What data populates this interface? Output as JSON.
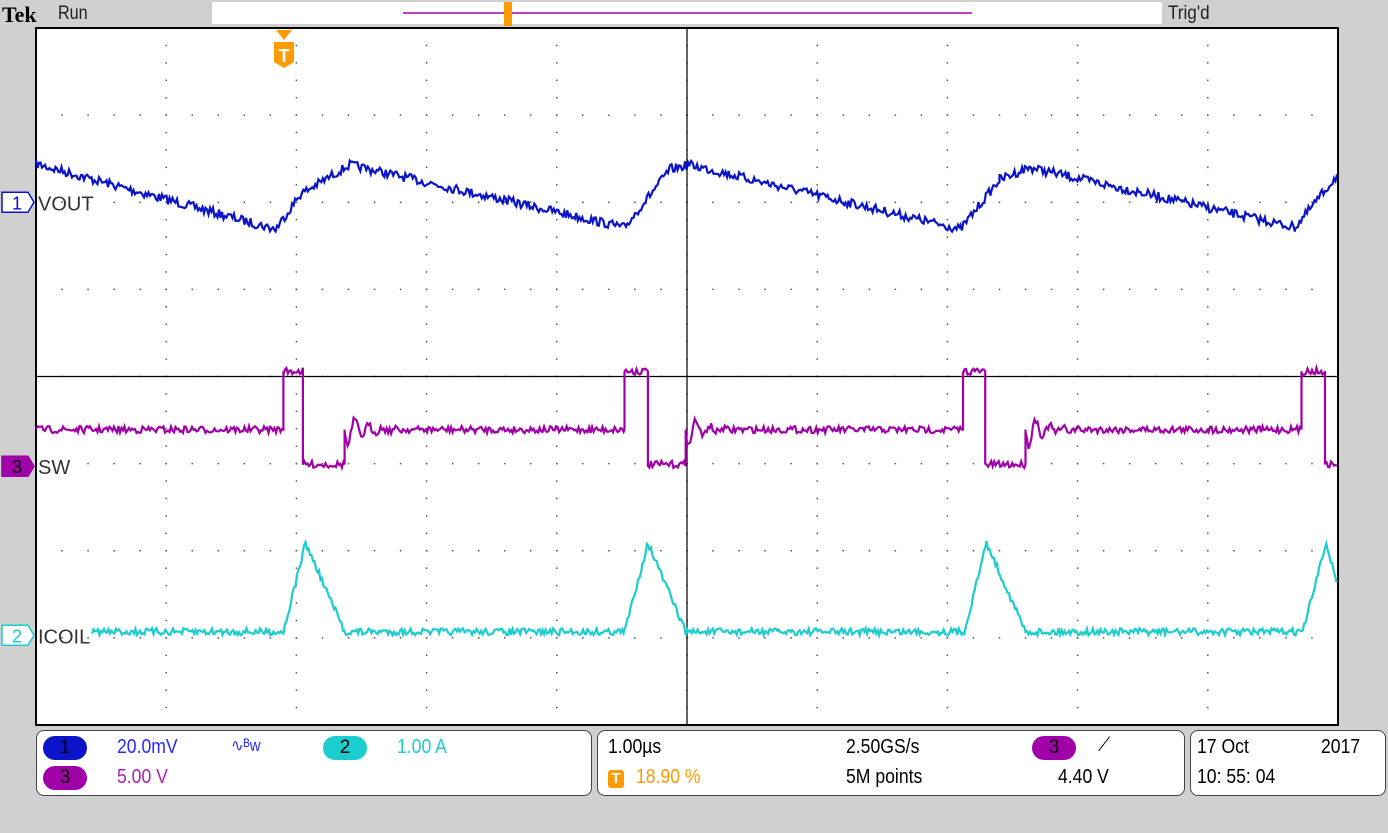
{
  "header": {
    "brand": "Tek",
    "state": "Run",
    "trigger_status": "Trig'd"
  },
  "colors": {
    "ch1": "#0a14c8",
    "ch2": "#1ccdd0",
    "ch3": "#a000a8",
    "trigger": "#ff9a00",
    "record": "#c040c0"
  },
  "icons": {
    "trigger_marker": "T-pentagon-icon",
    "bandwidth_limit": "bw-icon",
    "trigger_slope": "rising-edge-icon"
  },
  "chart_data": {
    "type": "line",
    "title": "",
    "xlabel": "",
    "ylabel": "",
    "x_unit": "µs",
    "xlim": [
      0,
      10
    ],
    "ylim_div": [
      -4,
      4
    ],
    "grid": true,
    "h_divisions": 10,
    "v_divisions": 8,
    "series": [
      {
        "name": "VOUT",
        "channel": "1",
        "color": "#0a14c8",
        "marker_div": 2.0,
        "x": [
          0,
          1.84,
          2.03,
          2.41,
          4.52,
          4.87,
          5.02,
          7.1,
          7.4,
          7.63,
          9.67,
          10
        ],
        "y": [
          2.44,
          1.69,
          2.09,
          2.43,
          1.71,
          2.38,
          2.43,
          1.69,
          2.26,
          2.4,
          1.71,
          2.32
        ]
      },
      {
        "name": "SW",
        "channel": "3",
        "color": "#a000a8",
        "marker_div": -1.03,
        "x": [
          0,
          1.9,
          1.9,
          2.05,
          2.05,
          2.37,
          2.37,
          4.52,
          4.52,
          4.7,
          4.7,
          4.99,
          4.99,
          7.12,
          7.12,
          7.29,
          7.29,
          7.6,
          7.6,
          9.72,
          9.72,
          9.9,
          9.9,
          10
        ],
        "y": [
          -0.61,
          -0.61,
          0.06,
          0.06,
          -1.01,
          -1.01,
          -0.61,
          -0.61,
          0.06,
          0.06,
          -1.01,
          -1.01,
          -0.61,
          -0.61,
          0.06,
          0.06,
          -1.01,
          -1.01,
          -0.61,
          -0.61,
          0.06,
          0.06,
          -1.01,
          -1.01
        ]
      },
      {
        "name": "ICOIL",
        "channel": "2",
        "color": "#1ccdd0",
        "marker_div": -2.97,
        "x": [
          0.43,
          1.9,
          2.07,
          2.37,
          4.52,
          4.7,
          4.99,
          7.13,
          7.3,
          7.6,
          9.73,
          9.91,
          10
        ],
        "y": [
          -2.93,
          -2.93,
          -1.91,
          -2.93,
          -2.93,
          -1.91,
          -2.93,
          -2.93,
          -1.91,
          -2.93,
          -2.93,
          -1.91,
          -2.4
        ]
      }
    ],
    "trigger_position_percent": 18.9
  },
  "readout": {
    "ch1": {
      "num": "1",
      "scale": "20.0mV",
      "bw": "∿ᴮw"
    },
    "ch2": {
      "num": "2",
      "scale": "1.00 A"
    },
    "ch3": {
      "num": "3",
      "scale": "5.00 V"
    },
    "timebase": "1.00µs",
    "trigger_pos": "18.90 %",
    "trigger_icon_label": "T",
    "sample_rate": "2.50GS/s",
    "record_length": "5M points",
    "trigger_source": "3",
    "trigger_slope": "⟋",
    "trigger_level": "4.40 V",
    "date": "17 Oct",
    "year": "2017",
    "time": "10: 55: 04"
  }
}
